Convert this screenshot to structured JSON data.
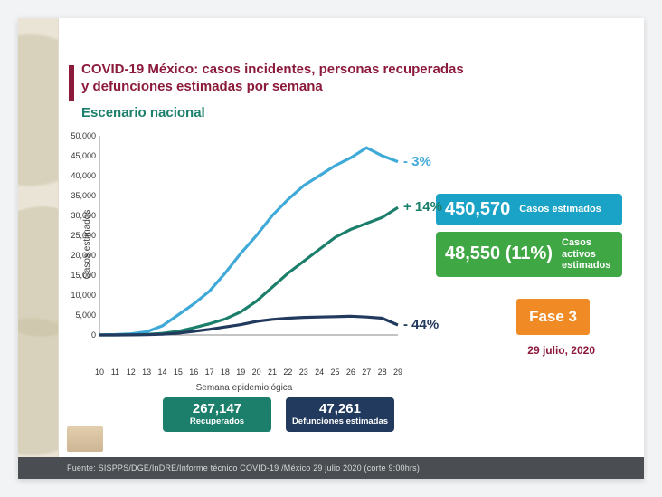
{
  "title": "COVID-19 México: casos incidentes, personas recuperadas y defunciones estimadas por semana",
  "subtitle": "Escenario nacional",
  "chart": {
    "type": "line",
    "ylabel": "Casos estimados",
    "xlabel": "Semana epidemiológica",
    "ylim": [
      0,
      50000
    ],
    "ytick_step": 5000,
    "x_categories": [
      "10",
      "11",
      "12",
      "13",
      "14",
      "15",
      "16",
      "17",
      "18",
      "19",
      "20",
      "21",
      "22",
      "23",
      "24",
      "25",
      "26",
      "27",
      "28",
      "29"
    ],
    "background_color": "#ffffff",
    "axis_color": "#888888",
    "line_width": 3.2,
    "series": [
      {
        "name": "casos-estimados",
        "color": "#3fa9d8",
        "values": [
          50,
          120,
          300,
          800,
          2300,
          5000,
          7800,
          11000,
          15500,
          20500,
          25000,
          30000,
          34000,
          37500,
          40000,
          42500,
          44500,
          47000,
          45000,
          43500
        ],
        "end_label": "- 3%",
        "end_label_color": "#3fa9d8"
      },
      {
        "name": "recuperados",
        "color": "#1b7f6b",
        "values": [
          0,
          10,
          50,
          150,
          400,
          900,
          1800,
          2800,
          4000,
          5800,
          8500,
          12000,
          15500,
          18500,
          21500,
          24500,
          26500,
          28000,
          29500,
          32000
        ],
        "end_label": "+ 14%",
        "end_label_color": "#1b7f6b"
      },
      {
        "name": "defunciones",
        "color": "#223a5e",
        "values": [
          0,
          5,
          20,
          60,
          180,
          450,
          900,
          1400,
          2000,
          2600,
          3400,
          3900,
          4200,
          4400,
          4500,
          4600,
          4700,
          4500,
          4200,
          2500
        ],
        "end_label": "- 44%",
        "end_label_color": "#223a5e"
      }
    ]
  },
  "stats_boxes": [
    {
      "value": "450,570",
      "label": "Casos estimados",
      "bg": "#1aa3c6"
    },
    {
      "value": "48,550 (11%)",
      "label": "Casos activos estimados",
      "bg": "#3fa845"
    }
  ],
  "fase": {
    "label": "Fase 3",
    "bg": "#f08a24"
  },
  "date": "29 julio, 2020",
  "bottom_pills": [
    {
      "value": "267,147",
      "label": "Recuperados",
      "bg": "#1b7f6b"
    },
    {
      "value": "47,261",
      "label": "Defunciones estimadas",
      "bg": "#223a5e"
    }
  ],
  "footer": "Fuente: SISPPS/DGE/InDRE/Informe técnico COVID-19 /México  29 julio 2020 (corte 9:00hrs)",
  "colors": {
    "accent": "#8b1a3b",
    "teal": "#1b7f6b"
  }
}
